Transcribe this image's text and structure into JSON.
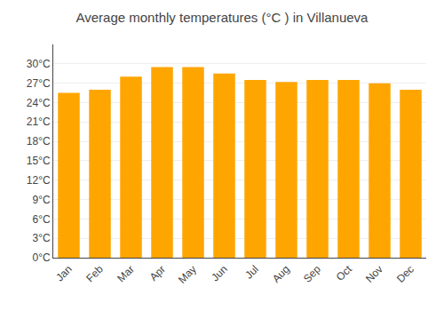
{
  "chart_data": {
    "type": "bar",
    "title": "Average monthly temperatures (°C ) in Villanueva",
    "categories": [
      "Jan",
      "Feb",
      "Mar",
      "Apr",
      "May",
      "Jun",
      "Jul",
      "Aug",
      "Sep",
      "Oct",
      "Nov",
      "Dec"
    ],
    "values": [
      25.5,
      26.0,
      28.0,
      29.5,
      29.5,
      28.5,
      27.5,
      27.2,
      27.5,
      27.5,
      27.0,
      26.0
    ],
    "color": "#FFA500",
    "ylim": [
      0,
      33
    ],
    "yticks": [
      {
        "value": 0,
        "label": "0°C"
      },
      {
        "value": 3,
        "label": "3°C"
      },
      {
        "value": 6,
        "label": "6°C"
      },
      {
        "value": 9,
        "label": "9°C"
      },
      {
        "value": 12,
        "label": "12°C"
      },
      {
        "value": 15,
        "label": "15°C"
      },
      {
        "value": 18,
        "label": "18°C"
      },
      {
        "value": 21,
        "label": "21°C"
      },
      {
        "value": 24,
        "label": "24°C"
      },
      {
        "value": 27,
        "label": "27°C"
      },
      {
        "value": 30,
        "label": "30°C"
      }
    ],
    "grid": true
  }
}
